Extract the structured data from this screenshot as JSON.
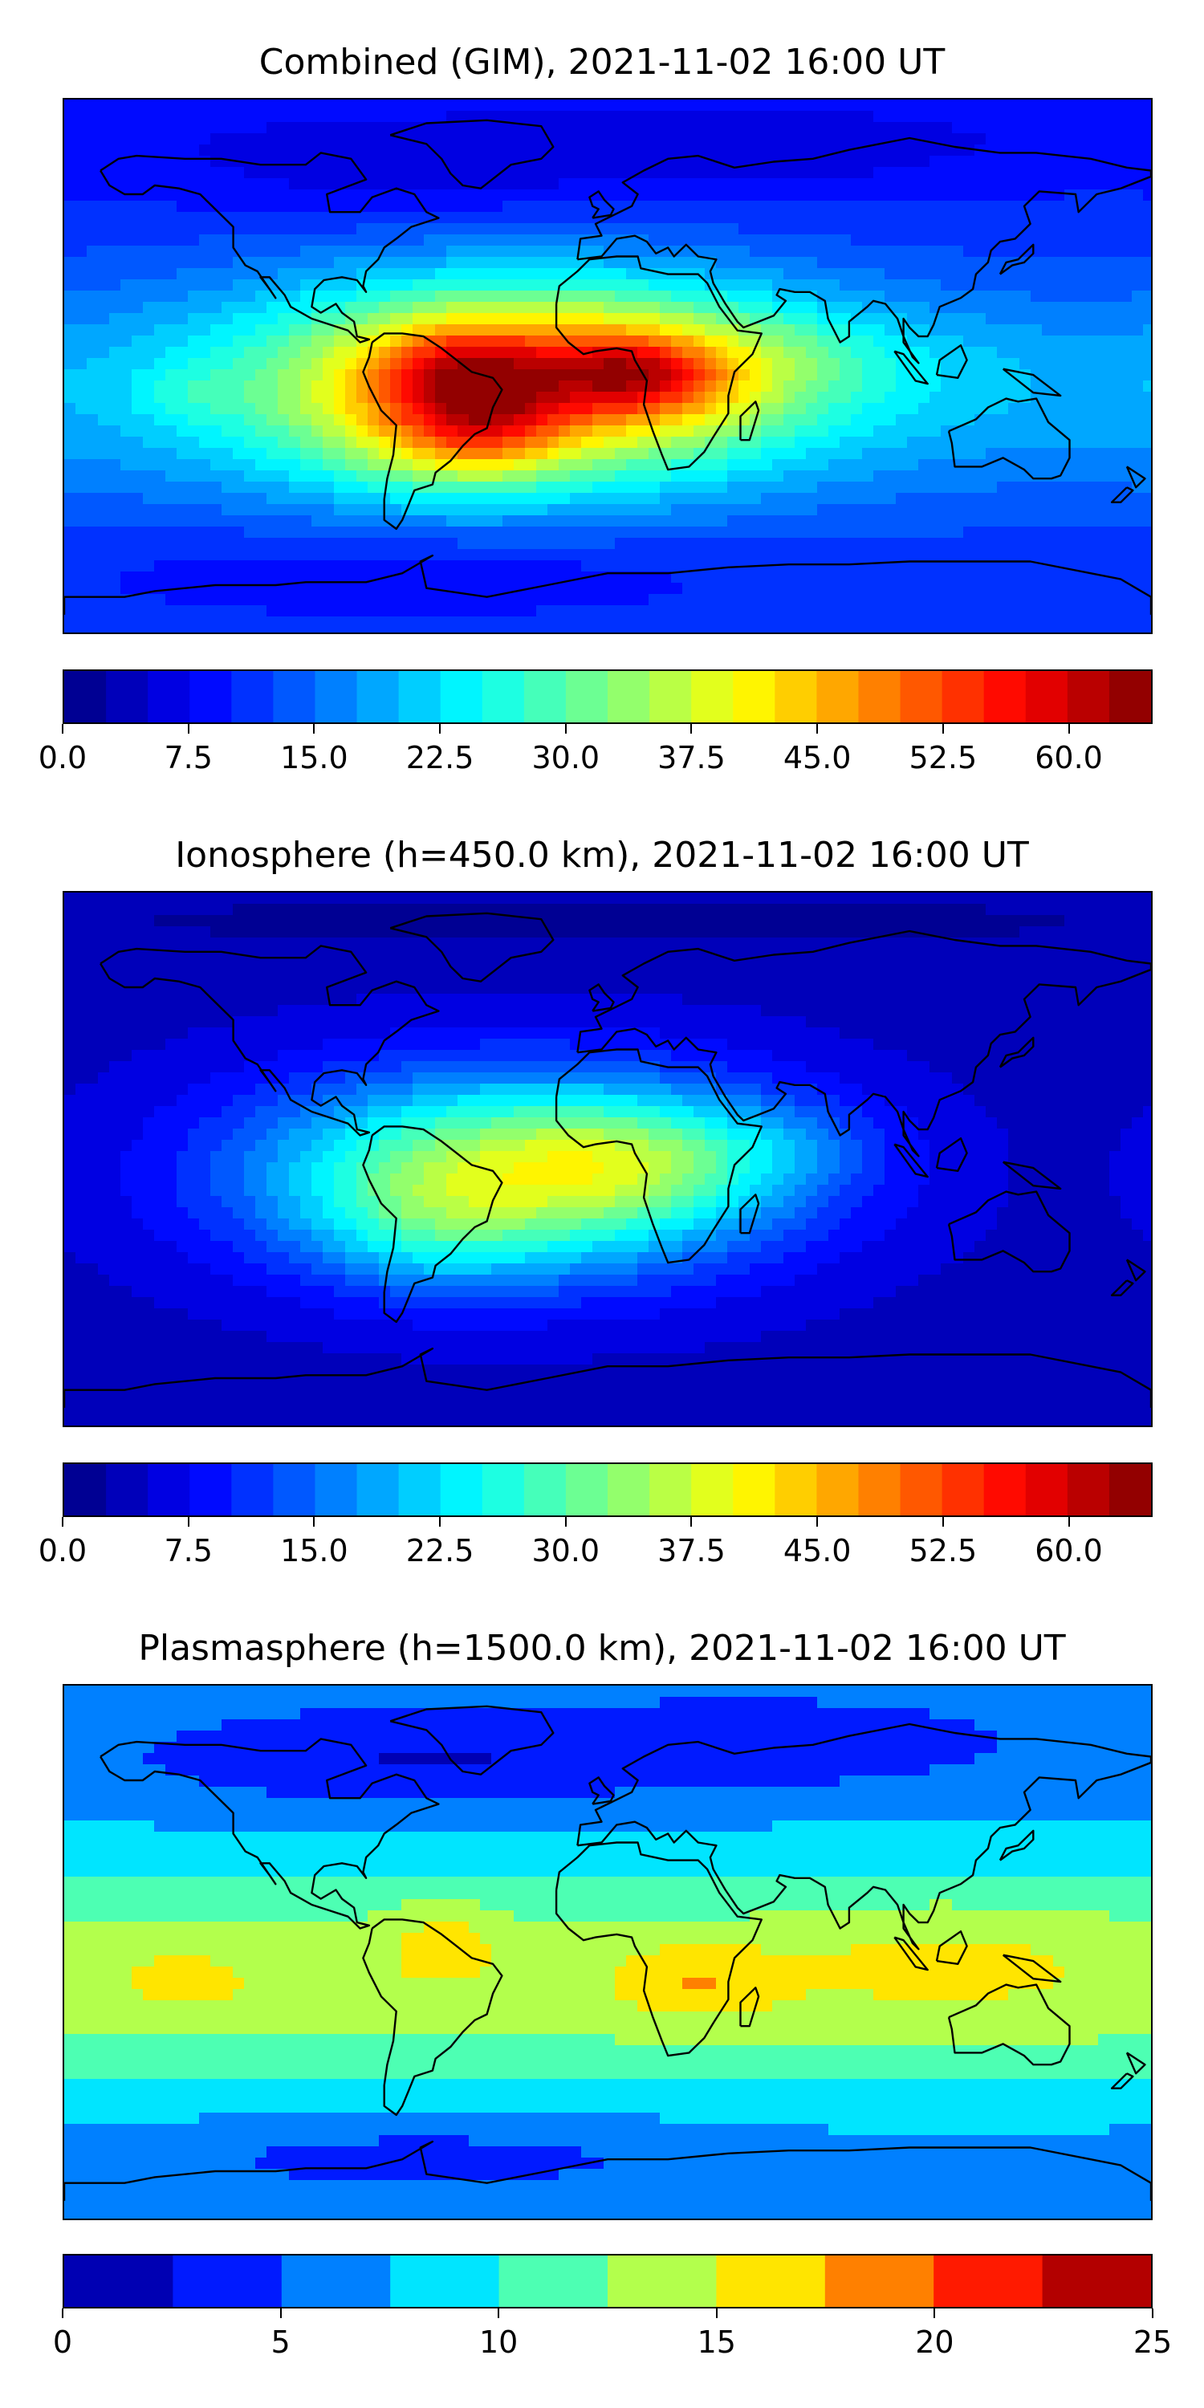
{
  "panels": [
    {
      "title": "Combined (GIM), 2021-11-02 16:00 UT",
      "field": "combined",
      "colorbar": {
        "min": 0,
        "max": 65,
        "step": 2.5,
        "ticks": [
          0.0,
          7.5,
          15.0,
          22.5,
          30.0,
          37.5,
          45.0,
          52.5,
          60.0
        ],
        "tick_labels": [
          "0.0",
          "7.5",
          "15.0",
          "22.5",
          "30.0",
          "37.5",
          "45.0",
          "52.5",
          "60.0"
        ]
      }
    },
    {
      "title": "Ionosphere  (h=450.0 km), 2021-11-02 16:00 UT",
      "field": "ionosphere",
      "colorbar": {
        "min": 0,
        "max": 65,
        "step": 2.5,
        "ticks": [
          0.0,
          7.5,
          15.0,
          22.5,
          30.0,
          37.5,
          45.0,
          52.5,
          60.0
        ],
        "tick_labels": [
          "0.0",
          "7.5",
          "15.0",
          "22.5",
          "30.0",
          "37.5",
          "45.0",
          "52.5",
          "60.0"
        ]
      }
    },
    {
      "title": "Plasmasphere (h=1500.0 km), 2021-11-02 16:00 UT",
      "field": "plasmasphere",
      "colorbar": {
        "min": 0,
        "max": 25,
        "step": 2.5,
        "ticks": [
          0,
          5,
          10,
          15,
          20,
          25
        ],
        "tick_labels": [
          "0",
          "5",
          "10",
          "15",
          "20",
          "25"
        ]
      }
    }
  ],
  "colormap": "jet"
}
